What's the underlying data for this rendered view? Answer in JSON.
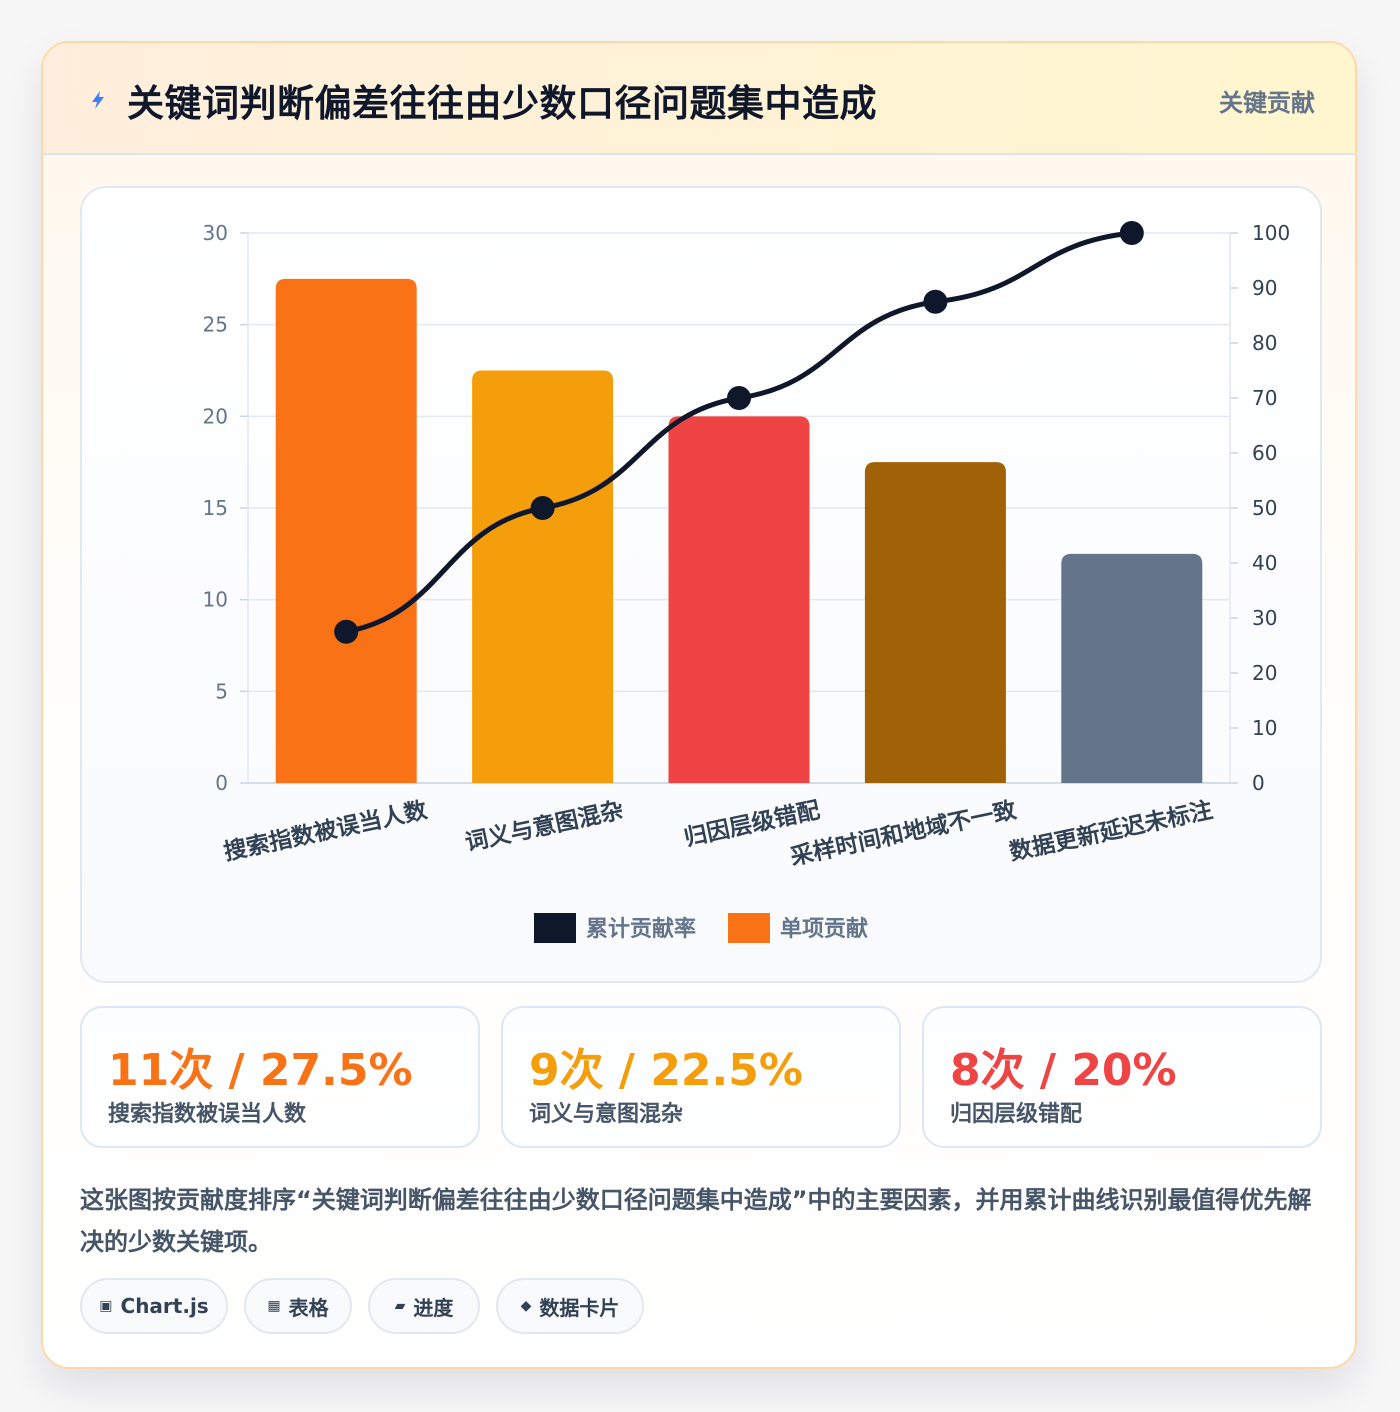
{
  "header": {
    "icon": "bolt-icon",
    "title": "关键词判断偏差往往由少数口径问题集中造成",
    "tag": "关键贡献"
  },
  "chart_data": {
    "type": "bar",
    "categories": [
      "搜索指数被误当人数",
      "词义与意图混杂",
      "归因层级错配",
      "采样时间和地域不一致",
      "数据更新延迟未标注"
    ],
    "series": [
      {
        "name": "单项贡献",
        "type": "bar",
        "axis": "left",
        "values": [
          27.5,
          22.5,
          20,
          17.5,
          12.5
        ],
        "colors": [
          "#f97316",
          "#f59e0b",
          "#ef4444",
          "#a16207",
          "#64748b"
        ]
      },
      {
        "name": "累计贡献率",
        "type": "line",
        "axis": "right",
        "values": [
          27.5,
          50,
          70,
          87.5,
          100
        ],
        "color": "#0f172a"
      }
    ],
    "y_left": {
      "min": 0,
      "max": 30,
      "ticks": [
        "0",
        "5",
        "10",
        "15",
        "20",
        "25",
        "30"
      ]
    },
    "y_right": {
      "min": 0,
      "max": 100,
      "ticks": [
        "0",
        "10",
        "20",
        "30",
        "40",
        "50",
        "60",
        "70",
        "80",
        "90",
        "100"
      ]
    },
    "grid": true,
    "legend": {
      "position": "bottom",
      "items": [
        {
          "label": "累计贡献率",
          "color": "#0f172a"
        },
        {
          "label": "单项贡献",
          "color": "#f97316"
        }
      ]
    }
  },
  "stats": [
    {
      "value": "11次 / 27.5%",
      "label": "搜索指数被误当人数",
      "color": "#f97316"
    },
    {
      "value": "9次 / 22.5%",
      "label": "词义与意图混杂",
      "color": "#f59e0b"
    },
    {
      "value": "8次 / 20%",
      "label": "归因层级错配",
      "color": "#ef4444"
    }
  ],
  "description": "这张图按贡献度排序“关键词判断偏差往往由少数口径问题集中造成”中的主要因素，并用累计曲线识别最值得优先解决的少数关键项。",
  "chips": [
    {
      "icon": "chart-icon",
      "glyph": "▣",
      "label": "Chart.js"
    },
    {
      "icon": "table-icon",
      "glyph": "▦",
      "label": "表格"
    },
    {
      "icon": "progress-icon",
      "glyph": "▰",
      "label": "进度"
    },
    {
      "icon": "card-icon",
      "glyph": "◆",
      "label": "数据卡片"
    }
  ]
}
